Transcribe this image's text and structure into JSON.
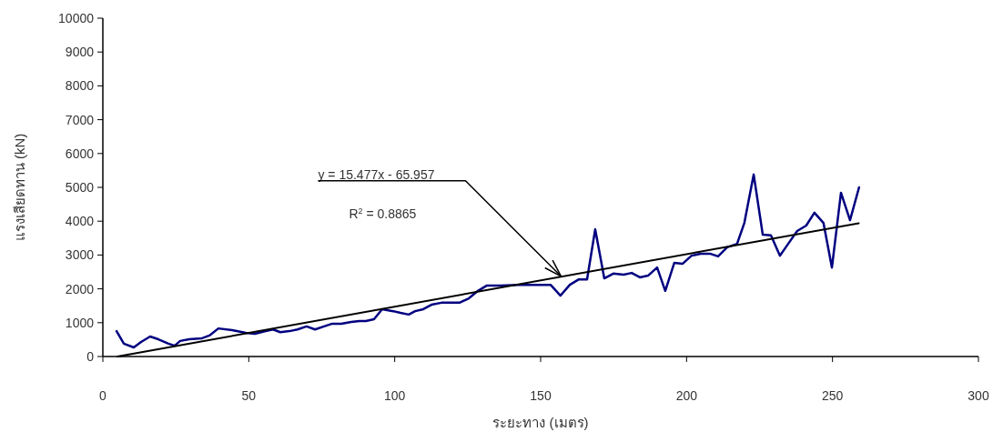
{
  "chart_data": {
    "type": "line",
    "xlabel": "ระยะทาง (เมตร)",
    "ylabel": "แรงเสียดทาน (kN)",
    "xlim": [
      0,
      300
    ],
    "xticks": [
      0,
      50,
      100,
      150,
      200,
      250,
      300
    ],
    "ylim": [
      0,
      10000
    ],
    "yticks": [
      0,
      1000,
      2000,
      3000,
      4000,
      5000,
      6000,
      7000,
      8000,
      9000,
      10000
    ],
    "grid": false,
    "series": [
      {
        "color": "#000080",
        "x": [
          4.7,
          7.2,
          10.6,
          13.1,
          16.2,
          19.0,
          22.5,
          24.6,
          26.5,
          29.6,
          34.0,
          36.5,
          39.6,
          44.3,
          49.0,
          52.1,
          55.8,
          58.3,
          60.8,
          63.9,
          66.7,
          69.8,
          72.7,
          75.8,
          78.6,
          81.7,
          85.1,
          87.9,
          90.1,
          92.9,
          95.7,
          99.5,
          102,
          104.8,
          107,
          109.8,
          112.6,
          116,
          119.7,
          122.2,
          125.4,
          128.5,
          131.6,
          136.3,
          142.5,
          153.4,
          156.8,
          160,
          163.1,
          165.9,
          168.7,
          171.8,
          174.9,
          178.4,
          181.2,
          184,
          186.8,
          189.9,
          192.7,
          195.8,
          198.6,
          201.7,
          204.8,
          208,
          210.8,
          213.9,
          217.3,
          219.8,
          223,
          226.1,
          228.9,
          232,
          234.8,
          237.9,
          241,
          243.8,
          246.9,
          249.8,
          252.9,
          256,
          259.1
        ],
        "values": [
          750,
          380,
          270,
          430,
          590,
          510,
          380,
          320,
          460,
          510,
          540,
          620,
          830,
          780,
          700,
          670,
          750,
          800,
          720,
          750,
          800,
          890,
          800,
          890,
          970,
          970,
          1020,
          1050,
          1050,
          1100,
          1400,
          1340,
          1290,
          1240,
          1340,
          1400,
          1530,
          1590,
          1590,
          1590,
          1720,
          1940,
          2100,
          2100,
          2120,
          2120,
          1800,
          2120,
          2280,
          2280,
          3760,
          2310,
          2450,
          2420,
          2470,
          2340,
          2390,
          2630,
          1940,
          2770,
          2740,
          2980,
          3040,
          3040,
          2960,
          3230,
          3330,
          3950,
          5380,
          3600,
          3580,
          2980,
          3330,
          3710,
          3870,
          4250,
          3950,
          2630,
          4840,
          4030,
          5000
        ]
      },
      {
        "type": "line",
        "color": "#000000",
        "x": [
          5,
          259
        ],
        "values": [
          0,
          3940
        ]
      }
    ],
    "annotations": [
      {
        "text": "y = 15.477x - 65.957",
        "x": 157,
        "y": 2370
      },
      "R$^{2}$ = 0.8865"
    ]
  }
}
